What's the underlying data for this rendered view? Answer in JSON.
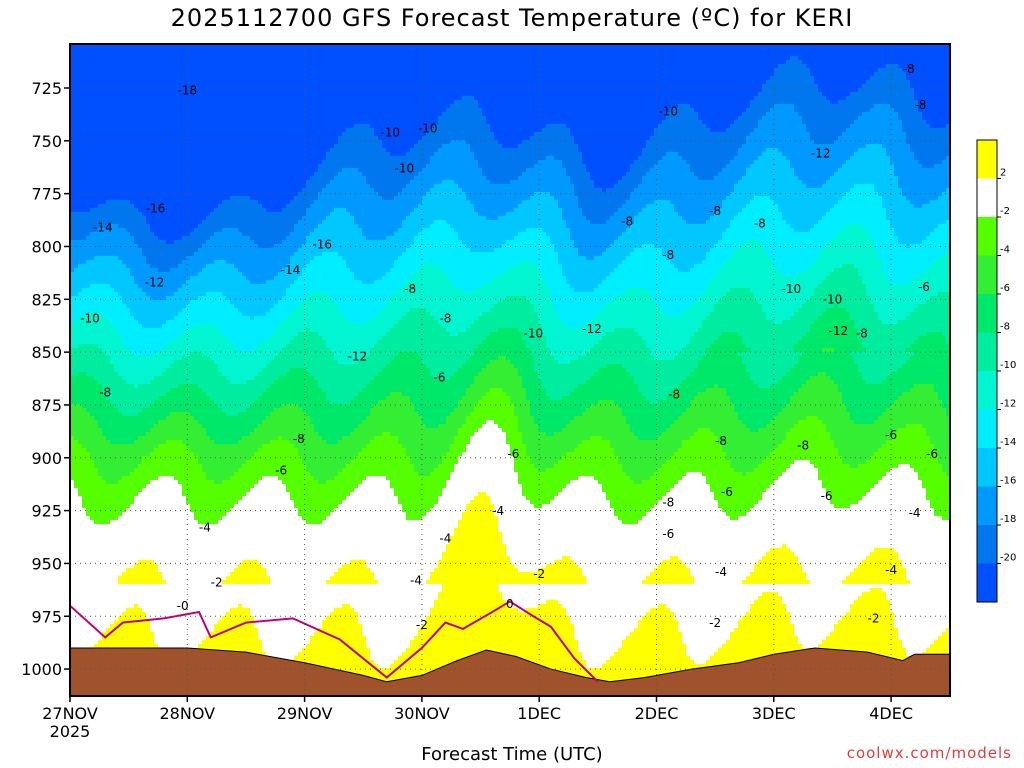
{
  "chart_data": {
    "type": "heatmap",
    "title": "2025112700 GFS Forecast Temperature (ºC) for KERI",
    "xlabel": "Forecast Time (UTC)",
    "ylabel": "",
    "credit": "coolwx.com/models",
    "x_ticks": [
      "27NOV",
      "28NOV",
      "29NOV",
      "30NOV",
      "1DEC",
      "2DEC",
      "3DEC",
      "4DEC"
    ],
    "x_year": "2025",
    "y_ticks": [
      725,
      750,
      775,
      800,
      825,
      850,
      875,
      900,
      925,
      950,
      975,
      1000
    ],
    "ylim": [
      1010,
      710
    ],
    "xlim_days": [
      0,
      7.5
    ],
    "grid": "dotted",
    "colorbar": {
      "labels": [
        "2",
        "-2",
        "-4",
        "-6",
        "-8",
        "-10",
        "-12",
        "-14",
        "-16",
        "-18",
        "-20"
      ],
      "bands": [
        {
          "from": 2,
          "to": 4,
          "color": "#ffff00"
        },
        {
          "from": -2,
          "to": 2,
          "color": "#ffffff"
        },
        {
          "from": -4,
          "to": -2,
          "color": "#55ff00"
        },
        {
          "from": -6,
          "to": -4,
          "color": "#33ee33"
        },
        {
          "from": -8,
          "to": -6,
          "color": "#00e86a"
        },
        {
          "from": -10,
          "to": -8,
          "color": "#00eda0"
        },
        {
          "from": -12,
          "to": -10,
          "color": "#00f5d0"
        },
        {
          "from": -14,
          "to": -12,
          "color": "#00ecff"
        },
        {
          "from": -16,
          "to": -14,
          "color": "#00c8ff"
        },
        {
          "from": -18,
          "to": -16,
          "color": "#0099ff"
        },
        {
          "from": -20,
          "to": -18,
          "color": "#0077ee"
        },
        {
          "from": -22,
          "to": -20,
          "color": "#0050ff"
        }
      ]
    },
    "terrain_color": "#a0522d",
    "contour_labels": [
      {
        "t": 1.0,
        "p": 728,
        "v": "-18"
      },
      {
        "t": 0.73,
        "p": 784,
        "v": "-16"
      },
      {
        "t": 2.15,
        "p": 801,
        "v": "-16"
      },
      {
        "t": 0.28,
        "p": 793,
        "v": "-14"
      },
      {
        "t": 1.88,
        "p": 813,
        "v": "-14"
      },
      {
        "t": 0.72,
        "p": 819,
        "v": "-12"
      },
      {
        "t": 2.45,
        "p": 854,
        "v": "-12"
      },
      {
        "t": 0.17,
        "p": 836,
        "v": "-10"
      },
      {
        "t": 0.3,
        "p": 871,
        "v": "-8"
      },
      {
        "t": 1.95,
        "p": 893,
        "v": "-8"
      },
      {
        "t": 1.8,
        "p": 908,
        "v": "-6"
      },
      {
        "t": 1.15,
        "p": 935,
        "v": "-4"
      },
      {
        "t": 1.25,
        "p": 961,
        "v": "-2"
      },
      {
        "t": 0.96,
        "p": 972,
        "v": "-0"
      },
      {
        "t": 2.73,
        "p": 748,
        "v": "-10"
      },
      {
        "t": 3.05,
        "p": 746,
        "v": "-10"
      },
      {
        "t": 2.85,
        "p": 765,
        "v": "-10"
      },
      {
        "t": 2.9,
        "p": 822,
        "v": "-8"
      },
      {
        "t": 3.2,
        "p": 836,
        "v": "-8"
      },
      {
        "t": 3.15,
        "p": 864,
        "v": "-6"
      },
      {
        "t": 3.2,
        "p": 940,
        "v": "-4"
      },
      {
        "t": 3.78,
        "p": 900,
        "v": "-6"
      },
      {
        "t": 3.65,
        "p": 927,
        "v": "-4"
      },
      {
        "t": 4.0,
        "p": 957,
        "v": "-2"
      },
      {
        "t": 3.75,
        "p": 971,
        "v": "0"
      },
      {
        "t": 3.0,
        "p": 981,
        "v": "-2"
      },
      {
        "t": 2.95,
        "p": 960,
        "v": "-4"
      },
      {
        "t": 3.95,
        "p": 843,
        "v": "-10"
      },
      {
        "t": 4.45,
        "p": 841,
        "v": "-12"
      },
      {
        "t": 4.75,
        "p": 790,
        "v": "-8"
      },
      {
        "t": 5.1,
        "p": 738,
        "v": "-10"
      },
      {
        "t": 5.15,
        "p": 872,
        "v": "-8"
      },
      {
        "t": 5.1,
        "p": 923,
        "v": "-8"
      },
      {
        "t": 5.1,
        "p": 806,
        "v": "-8"
      },
      {
        "t": 5.1,
        "p": 938,
        "v": "-6"
      },
      {
        "t": 5.5,
        "p": 785,
        "v": "-8"
      },
      {
        "t": 5.55,
        "p": 894,
        "v": "-8"
      },
      {
        "t": 5.6,
        "p": 918,
        "v": "-6"
      },
      {
        "t": 5.55,
        "p": 956,
        "v": "-4"
      },
      {
        "t": 5.5,
        "p": 980,
        "v": "-2"
      },
      {
        "t": 5.88,
        "p": 791,
        "v": "-8"
      },
      {
        "t": 6.15,
        "p": 822,
        "v": "-10"
      },
      {
        "t": 6.25,
        "p": 896,
        "v": "-8"
      },
      {
        "t": 6.45,
        "p": 920,
        "v": "-6"
      },
      {
        "t": 6.4,
        "p": 758,
        "v": "-12"
      },
      {
        "t": 6.5,
        "p": 827,
        "v": "-10"
      },
      {
        "t": 6.55,
        "p": 842,
        "v": "-12"
      },
      {
        "t": 6.75,
        "p": 843,
        "v": "-8"
      },
      {
        "t": 7.0,
        "p": 891,
        "v": "-6"
      },
      {
        "t": 7.0,
        "p": 955,
        "v": "-4"
      },
      {
        "t": 6.85,
        "p": 978,
        "v": "-2"
      },
      {
        "t": 7.2,
        "p": 928,
        "v": "-4"
      },
      {
        "t": 7.35,
        "p": 900,
        "v": "-6"
      },
      {
        "t": 7.28,
        "p": 821,
        "v": "-6"
      },
      {
        "t": 7.25,
        "p": 735,
        "v": "-8"
      },
      {
        "t": 7.15,
        "p": 718,
        "v": "-8"
      }
    ]
  }
}
